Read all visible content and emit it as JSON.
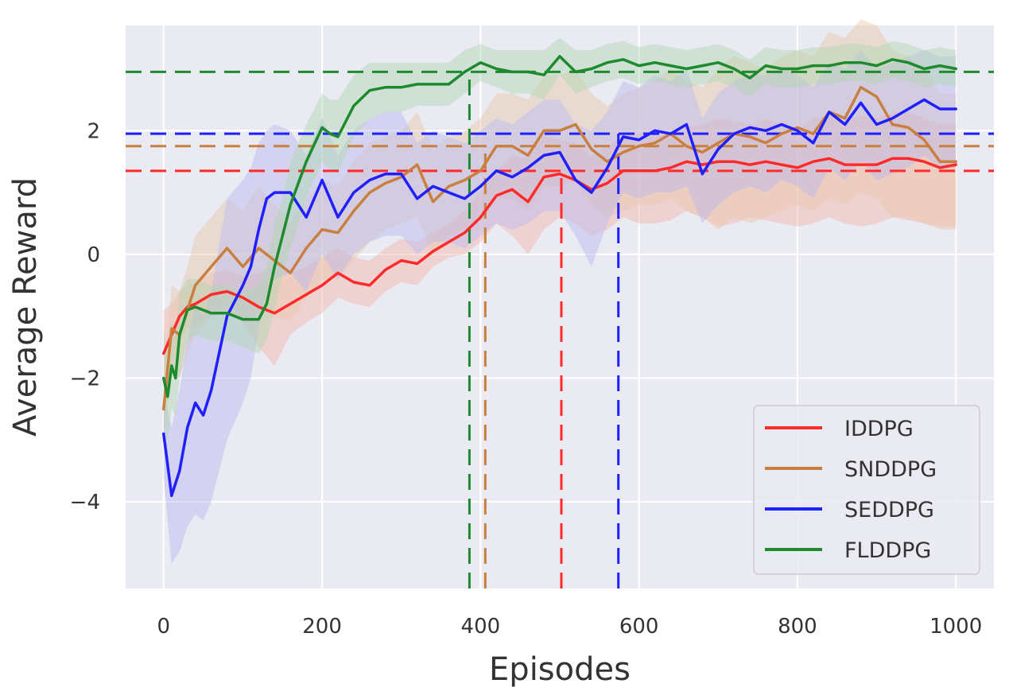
{
  "chart_data": {
    "type": "line",
    "title": "",
    "xlabel": "Episodes",
    "ylabel": "Average Reward",
    "xlim": [
      -48,
      1048
    ],
    "ylim": [
      -5.4,
      3.7
    ],
    "x_ticks": [
      0,
      200,
      400,
      600,
      800,
      1000
    ],
    "x_tick_labels": [
      "0",
      "200",
      "400",
      "600",
      "800",
      "1000"
    ],
    "y_ticks": [
      -4,
      -2,
      0,
      2
    ],
    "y_tick_labels": [
      "−4",
      "−2",
      "0",
      "2"
    ],
    "grid": true,
    "legend_placement": "lower-right",
    "style": {
      "plot_background": "#eaeaf2",
      "grid_color": "#ffffff",
      "text_color": "#333333"
    },
    "series": [
      {
        "name": "IDDPG",
        "color": "#ff2a2a",
        "band_color": "#f4b4a8",
        "x": [
          0,
          10,
          20,
          30,
          40,
          60,
          80,
          100,
          120,
          140,
          160,
          180,
          200,
          220,
          240,
          260,
          280,
          300,
          320,
          340,
          360,
          380,
          400,
          420,
          440,
          460,
          480,
          500,
          520,
          540,
          560,
          580,
          600,
          620,
          640,
          660,
          680,
          700,
          720,
          740,
          760,
          780,
          800,
          820,
          840,
          860,
          880,
          900,
          920,
          940,
          960,
          980,
          1000
        ],
        "values": [
          -1.6,
          -1.3,
          -1.0,
          -0.85,
          -0.8,
          -0.65,
          -0.6,
          -0.7,
          -0.85,
          -0.95,
          -0.8,
          -0.65,
          -0.5,
          -0.3,
          -0.45,
          -0.5,
          -0.25,
          -0.1,
          -0.15,
          0.05,
          0.2,
          0.35,
          0.6,
          0.95,
          1.05,
          0.85,
          1.25,
          1.3,
          1.2,
          1.05,
          1.15,
          1.35,
          1.35,
          1.35,
          1.4,
          1.5,
          1.45,
          1.5,
          1.5,
          1.45,
          1.5,
          1.45,
          1.4,
          1.5,
          1.55,
          1.45,
          1.45,
          1.45,
          1.55,
          1.55,
          1.5,
          1.4,
          1.45
        ],
        "lower": [
          -2.3,
          -1.8,
          -1.4,
          -1.2,
          -1.15,
          -1.0,
          -0.95,
          -1.1,
          -1.5,
          -1.8,
          -1.3,
          -1.1,
          -0.95,
          -0.7,
          -0.8,
          -0.85,
          -0.6,
          -0.45,
          -0.5,
          -0.2,
          -0.05,
          0.0,
          0.2,
          0.5,
          0.3,
          0.0,
          0.4,
          0.6,
          0.5,
          0.3,
          0.4,
          0.6,
          0.5,
          0.5,
          0.55,
          0.7,
          0.6,
          0.45,
          0.5,
          0.6,
          0.55,
          0.5,
          0.45,
          0.5,
          0.6,
          0.5,
          0.45,
          0.5,
          0.6,
          0.55,
          0.5,
          0.45,
          0.45
        ],
        "upper": [
          -0.9,
          -0.8,
          -0.6,
          -0.5,
          -0.45,
          -0.3,
          -0.25,
          -0.35,
          -0.3,
          -0.2,
          -0.3,
          -0.2,
          -0.05,
          0.1,
          -0.05,
          -0.1,
          0.1,
          0.25,
          0.2,
          0.35,
          0.5,
          0.7,
          1.0,
          1.35,
          1.6,
          1.55,
          1.9,
          1.85,
          1.8,
          1.6,
          1.75,
          1.9,
          1.95,
          1.9,
          1.95,
          2.05,
          2.1,
          2.2,
          2.15,
          2.1,
          2.2,
          2.1,
          2.0,
          2.2,
          2.25,
          2.2,
          2.25,
          2.2,
          2.3,
          2.3,
          2.2,
          2.1,
          2.1
        ],
        "threshold_y": 1.35,
        "convergence_x": 502
      },
      {
        "name": "SNDDPG",
        "color": "#c97f3f",
        "band_color": "#e8c8a8",
        "x": [
          0,
          10,
          20,
          30,
          40,
          60,
          80,
          100,
          120,
          140,
          160,
          180,
          200,
          220,
          240,
          260,
          280,
          300,
          320,
          340,
          360,
          380,
          400,
          420,
          440,
          460,
          480,
          500,
          520,
          540,
          560,
          580,
          600,
          620,
          640,
          660,
          680,
          700,
          720,
          740,
          760,
          780,
          800,
          820,
          840,
          860,
          880,
          900,
          920,
          940,
          960,
          980,
          1000
        ],
        "values": [
          -2.5,
          -1.2,
          -1.3,
          -0.9,
          -0.5,
          -0.2,
          0.1,
          -0.2,
          0.1,
          -0.1,
          -0.3,
          0.1,
          0.4,
          0.35,
          0.7,
          1.0,
          1.15,
          1.25,
          1.45,
          0.85,
          1.1,
          1.2,
          1.35,
          1.75,
          1.75,
          1.6,
          2.0,
          2.0,
          2.1,
          1.7,
          1.5,
          1.65,
          1.75,
          1.8,
          1.95,
          1.75,
          1.65,
          1.8,
          1.95,
          1.9,
          1.8,
          1.95,
          2.05,
          1.95,
          2.3,
          2.2,
          2.7,
          2.55,
          2.1,
          2.05,
          1.85,
          1.5,
          1.5
        ],
        "lower": [
          -3.0,
          -1.9,
          -2.0,
          -1.6,
          -1.3,
          -1.0,
          -0.7,
          -1.1,
          -0.9,
          -1.0,
          -1.1,
          -0.7,
          -0.4,
          -0.4,
          -0.1,
          0.2,
          0.4,
          0.5,
          0.6,
          0.0,
          0.3,
          0.4,
          0.5,
          0.9,
          0.9,
          0.7,
          1.1,
          1.1,
          1.2,
          0.8,
          0.6,
          0.7,
          0.8,
          0.8,
          0.9,
          0.7,
          0.6,
          0.4,
          0.6,
          0.5,
          0.6,
          0.7,
          0.8,
          0.7,
          0.9,
          0.8,
          1.0,
          0.9,
          0.6,
          0.6,
          0.5,
          0.4,
          0.4
        ],
        "upper": [
          -2.0,
          -0.5,
          -0.6,
          -0.2,
          0.3,
          0.6,
          0.9,
          0.7,
          1.1,
          0.8,
          0.5,
          0.9,
          1.2,
          1.1,
          1.5,
          1.8,
          1.9,
          2.0,
          2.3,
          1.7,
          1.9,
          2.0,
          2.2,
          2.6,
          2.6,
          2.5,
          2.9,
          2.9,
          3.0,
          2.6,
          2.4,
          2.6,
          2.7,
          2.8,
          3.0,
          2.8,
          2.7,
          3.0,
          3.2,
          3.1,
          3.0,
          3.2,
          3.3,
          3.2,
          3.6,
          3.5,
          3.8,
          3.7,
          3.3,
          3.2,
          3.0,
          2.6,
          2.6
        ],
        "threshold_y": 1.75,
        "convergence_x": 406
      },
      {
        "name": "SEDDPG",
        "color": "#1f1fff",
        "band_color": "#b8b8f0",
        "x": [
          0,
          10,
          20,
          30,
          40,
          50,
          60,
          80,
          100,
          110,
          120,
          130,
          140,
          160,
          180,
          200,
          220,
          240,
          260,
          280,
          300,
          320,
          340,
          360,
          380,
          400,
          420,
          440,
          460,
          480,
          500,
          520,
          540,
          560,
          580,
          600,
          620,
          640,
          660,
          680,
          700,
          720,
          740,
          760,
          780,
          800,
          820,
          840,
          860,
          880,
          900,
          920,
          940,
          960,
          980,
          1000
        ],
        "values": [
          -2.9,
          -3.9,
          -3.5,
          -2.8,
          -2.4,
          -2.6,
          -2.2,
          -1.0,
          -0.5,
          -0.2,
          0.4,
          0.9,
          1.0,
          1.0,
          0.6,
          1.2,
          0.6,
          1.0,
          1.2,
          1.3,
          1.3,
          0.9,
          1.1,
          1.0,
          0.9,
          1.1,
          1.35,
          1.25,
          1.4,
          1.6,
          1.65,
          1.2,
          1.0,
          1.4,
          1.9,
          1.85,
          2.0,
          1.95,
          2.1,
          1.3,
          1.7,
          1.95,
          2.05,
          2.0,
          2.1,
          2.0,
          1.8,
          2.3,
          2.1,
          2.45,
          2.1,
          2.2,
          2.35,
          2.5,
          2.35,
          2.35
        ],
        "lower": [
          -3.6,
          -5.0,
          -4.8,
          -4.4,
          -4.2,
          -4.3,
          -4.0,
          -3.0,
          -2.4,
          -2.0,
          -1.2,
          -0.6,
          -0.4,
          -0.3,
          -0.6,
          0.0,
          -0.4,
          0.0,
          0.2,
          0.3,
          0.3,
          0.0,
          0.2,
          0.2,
          0.1,
          0.3,
          0.5,
          0.4,
          0.5,
          0.7,
          0.7,
          0.3,
          -0.2,
          0.5,
          1.0,
          0.9,
          1.0,
          1.0,
          1.1,
          0.5,
          0.8,
          1.0,
          1.1,
          1.0,
          1.2,
          1.1,
          0.9,
          1.4,
          1.2,
          1.5,
          1.2,
          1.3,
          1.4,
          1.6,
          1.4,
          1.4
        ],
        "upper": [
          -2.2,
          -2.8,
          -2.2,
          -1.4,
          -0.8,
          -1.0,
          -0.6,
          0.9,
          1.2,
          1.4,
          1.8,
          2.0,
          2.1,
          2.0,
          1.6,
          2.2,
          1.6,
          2.0,
          2.2,
          2.3,
          2.3,
          1.8,
          2.0,
          1.9,
          1.8,
          2.0,
          2.2,
          2.1,
          2.3,
          2.5,
          2.5,
          2.1,
          2.0,
          2.3,
          2.8,
          2.7,
          2.9,
          2.8,
          3.0,
          2.2,
          2.6,
          2.8,
          2.9,
          2.9,
          3.0,
          2.9,
          2.7,
          3.1,
          3.0,
          3.3,
          3.0,
          3.1,
          3.2,
          3.3,
          3.2,
          3.2
        ],
        "threshold_y": 1.95,
        "convergence_x": 574
      },
      {
        "name": "FLDDPG",
        "color": "#1e8a2e",
        "band_color": "#b0d8b0",
        "x": [
          0,
          5,
          10,
          15,
          20,
          30,
          40,
          60,
          80,
          100,
          120,
          130,
          140,
          150,
          160,
          180,
          200,
          210,
          220,
          240,
          260,
          280,
          300,
          320,
          340,
          360,
          380,
          400,
          420,
          440,
          460,
          480,
          500,
          520,
          540,
          560,
          580,
          600,
          620,
          640,
          660,
          680,
          700,
          720,
          740,
          760,
          780,
          800,
          820,
          840,
          860,
          880,
          900,
          920,
          940,
          960,
          980,
          1000
        ],
        "values": [
          -2.0,
          -2.3,
          -1.8,
          -2.0,
          -1.3,
          -0.9,
          -0.85,
          -0.95,
          -0.95,
          -1.05,
          -1.05,
          -0.8,
          -0.2,
          0.3,
          0.8,
          1.5,
          2.05,
          1.95,
          1.9,
          2.4,
          2.65,
          2.7,
          2.7,
          2.75,
          2.75,
          2.75,
          2.95,
          3.1,
          3.0,
          2.95,
          2.95,
          2.9,
          3.2,
          2.95,
          3.0,
          3.1,
          3.15,
          3.05,
          3.1,
          3.05,
          3.0,
          3.05,
          3.1,
          3.0,
          2.85,
          3.05,
          3.0,
          3.0,
          3.05,
          3.05,
          3.1,
          3.1,
          3.05,
          3.15,
          3.1,
          3.0,
          3.05,
          3.0
        ],
        "lower": [
          -2.8,
          -3.0,
          -2.5,
          -2.6,
          -2.0,
          -1.4,
          -1.3,
          -1.4,
          -1.4,
          -1.5,
          -1.6,
          -1.4,
          -0.9,
          -0.3,
          0.1,
          0.9,
          1.5,
          1.4,
          1.3,
          1.9,
          2.2,
          2.3,
          2.3,
          2.4,
          2.4,
          2.4,
          2.6,
          2.8,
          2.7,
          2.6,
          2.6,
          2.5,
          2.9,
          2.6,
          2.7,
          2.8,
          2.85,
          2.75,
          2.8,
          2.75,
          2.7,
          2.75,
          2.8,
          2.7,
          2.55,
          2.75,
          2.7,
          2.7,
          2.75,
          2.75,
          2.8,
          2.8,
          2.75,
          2.85,
          2.8,
          2.7,
          2.75,
          2.7
        ],
        "upper": [
          -1.2,
          -1.6,
          -1.1,
          -1.3,
          -0.6,
          -0.4,
          -0.4,
          -0.5,
          -0.5,
          -0.6,
          -0.5,
          -0.2,
          0.5,
          0.9,
          1.5,
          2.1,
          2.6,
          2.5,
          2.5,
          2.9,
          3.1,
          3.1,
          3.1,
          3.1,
          3.1,
          3.1,
          3.3,
          3.4,
          3.3,
          3.3,
          3.3,
          3.3,
          3.5,
          3.3,
          3.3,
          3.4,
          3.45,
          3.35,
          3.4,
          3.35,
          3.3,
          3.35,
          3.4,
          3.3,
          3.15,
          3.35,
          3.3,
          3.3,
          3.35,
          3.35,
          3.4,
          3.4,
          3.35,
          3.45,
          3.4,
          3.3,
          3.35,
          3.3
        ],
        "threshold_y": 2.95,
        "convergence_x": 386
      }
    ]
  }
}
